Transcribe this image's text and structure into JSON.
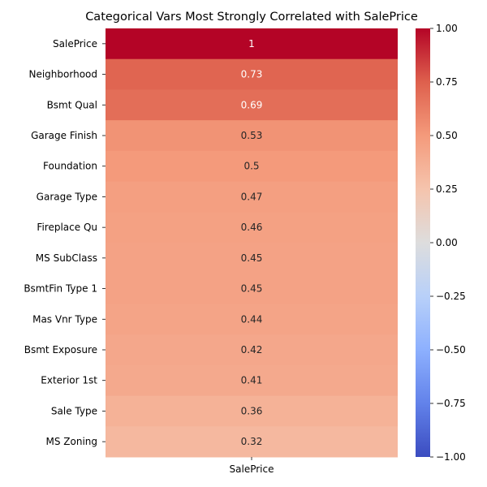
{
  "chart_data": {
    "type": "heatmap",
    "title": "Categorical Vars Most Strongly Correlated with SalePrice",
    "rows": [
      "SalePrice",
      "Neighborhood",
      "Bsmt Qual",
      "Garage Finish",
      "Foundation",
      "Garage Type",
      "Fireplace Qu",
      "MS SubClass",
      "BsmtFin Type 1",
      "Mas Vnr Type",
      "Bsmt Exposure",
      "Exterior 1st",
      "Sale Type",
      "MS Zoning"
    ],
    "columns": [
      "SalePrice"
    ],
    "values": [
      1,
      0.73,
      0.69,
      0.53,
      0.5,
      0.47,
      0.46,
      0.45,
      0.45,
      0.44,
      0.42,
      0.41,
      0.36,
      0.32
    ],
    "value_labels": [
      "1",
      "0.73",
      "0.69",
      "0.53",
      "0.5",
      "0.47",
      "0.46",
      "0.45",
      "0.45",
      "0.44",
      "0.42",
      "0.41",
      "0.36",
      "0.32"
    ],
    "colormap": "coolwarm",
    "vmin": -1,
    "vmax": 1,
    "colorbar_ticks": [
      "1.00",
      "0.75",
      "0.50",
      "0.25",
      "0.00",
      "−0.25",
      "−0.50",
      "−0.75",
      "−1.00"
    ],
    "colorbar_tick_values": [
      1,
      0.75,
      0.5,
      0.25,
      0,
      -0.25,
      -0.5,
      -0.75,
      -1
    ]
  }
}
